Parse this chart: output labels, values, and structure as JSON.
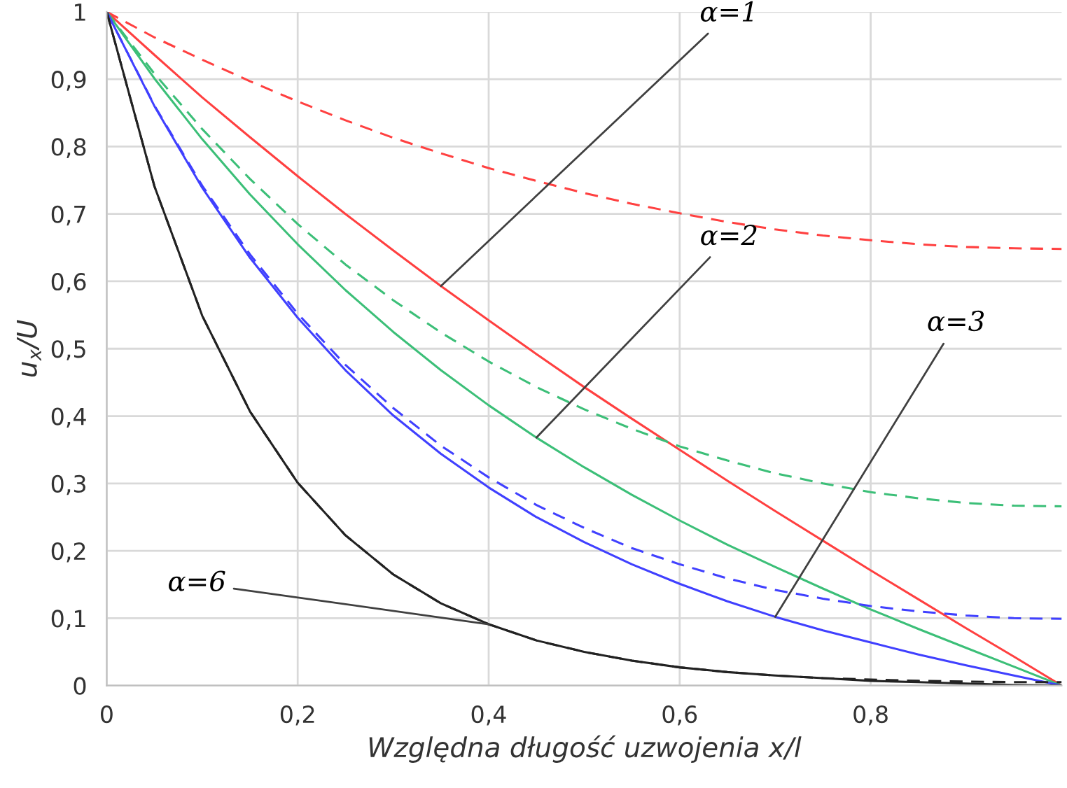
{
  "chart_data": {
    "type": "line",
    "xlabel": "Względna długość uzwojenia x/l",
    "ylabel": "u$_{x}$/U",
    "x": [
      0,
      0.05,
      0.1,
      0.15,
      0.2,
      0.25,
      0.3,
      0.35,
      0.4,
      0.45,
      0.5,
      0.55,
      0.6,
      0.65,
      0.7,
      0.75,
      0.8,
      0.85,
      0.9,
      0.95,
      1
    ],
    "series": [
      {
        "color": "#ff4040",
        "line_style": "dashed",
        "values": [
          1,
          0.962,
          0.929,
          0.897,
          0.867,
          0.839,
          0.813,
          0.79,
          0.768,
          0.749,
          0.731,
          0.715,
          0.701,
          0.688,
          0.677,
          0.668,
          0.661,
          0.655,
          0.651,
          0.649,
          0.648
        ]
      },
      {
        "color": "#ff4040",
        "line_style": "solid",
        "values": [
          1,
          0.936,
          0.873,
          0.814,
          0.756,
          0.7,
          0.646,
          0.593,
          0.542,
          0.492,
          0.443,
          0.396,
          0.35,
          0.304,
          0.259,
          0.215,
          0.171,
          0.128,
          0.085,
          0.043,
          0
        ]
      },
      {
        "color": "#3cbf78",
        "line_style": "dashed",
        "values": [
          1,
          0.908,
          0.826,
          0.752,
          0.685,
          0.625,
          0.572,
          0.524,
          0.481,
          0.443,
          0.41,
          0.381,
          0.355,
          0.334,
          0.315,
          0.3,
          0.287,
          0.278,
          0.271,
          0.267,
          0.266
        ]
      },
      {
        "color": "#3cbf78",
        "line_style": "solid",
        "values": [
          1,
          0.901,
          0.811,
          0.729,
          0.655,
          0.587,
          0.525,
          0.468,
          0.416,
          0.368,
          0.324,
          0.283,
          0.245,
          0.209,
          0.176,
          0.144,
          0.113,
          0.084,
          0.056,
          0.028,
          0
        ]
      },
      {
        "color": "#4040ff",
        "line_style": "dashed",
        "values": [
          1,
          0.861,
          0.742,
          0.64,
          0.552,
          0.476,
          0.412,
          0.356,
          0.309,
          0.268,
          0.234,
          0.204,
          0.18,
          0.159,
          0.142,
          0.129,
          0.118,
          0.11,
          0.104,
          0.1,
          0.099
        ]
      },
      {
        "color": "#4040ff",
        "line_style": "solid",
        "values": [
          1,
          0.86,
          0.739,
          0.635,
          0.546,
          0.468,
          0.401,
          0.344,
          0.294,
          0.25,
          0.213,
          0.18,
          0.151,
          0.125,
          0.102,
          0.082,
          0.064,
          0.046,
          0.03,
          0.015,
          0
        ]
      },
      {
        "color": "#222222",
        "line_style": "dashed",
        "values": [
          1,
          0.741,
          0.549,
          0.407,
          0.301,
          0.223,
          0.165,
          0.122,
          0.091,
          0.067,
          0.05,
          0.037,
          0.027,
          0.02,
          0.015,
          0.011,
          0.009,
          0.007,
          0.006,
          0.005,
          0.005
        ]
      },
      {
        "color": "#222222",
        "line_style": "solid",
        "values": [
          1,
          0.741,
          0.549,
          0.407,
          0.301,
          0.223,
          0.165,
          0.122,
          0.091,
          0.067,
          0.05,
          0.037,
          0.027,
          0.02,
          0.015,
          0.011,
          0.007,
          0.005,
          0.003,
          0.001,
          0
        ]
      }
    ],
    "annotations": [
      {
        "text": "α=1",
        "x": 0.35,
        "y": 0.593
      },
      {
        "text": "α=2",
        "x": 0.45,
        "y": 0.368
      },
      {
        "text": "α=3",
        "x": 0.7,
        "y": 0.102
      },
      {
        "text": "α=6",
        "x": 0.4,
        "y": 0.091
      }
    ],
    "xlim": [
      0,
      1
    ],
    "ylim": [
      0,
      1
    ],
    "xticks": [
      {
        "value": 0,
        "label": "0"
      },
      {
        "value": 0.2,
        "label": "0,2"
      },
      {
        "value": 0.4,
        "label": "0,4"
      },
      {
        "value": 0.6,
        "label": "0,6"
      },
      {
        "value": 0.8,
        "label": "0,8"
      }
    ],
    "yticks": [
      {
        "value": 0,
        "label": "0"
      },
      {
        "value": 0.1,
        "label": "0,1"
      },
      {
        "value": 0.2,
        "label": "0,2"
      },
      {
        "value": 0.3,
        "label": "0,3"
      },
      {
        "value": 0.4,
        "label": "0,4"
      },
      {
        "value": 0.5,
        "label": "0,5"
      },
      {
        "value": 0.6,
        "label": "0,6"
      },
      {
        "value": 0.7,
        "label": "0,7"
      },
      {
        "value": 0.8,
        "label": "0,8"
      },
      {
        "value": 0.9,
        "label": "0,9"
      },
      {
        "value": 1,
        "label": "1"
      }
    ],
    "grid": true,
    "legend": false,
    "marker": "none"
  }
}
